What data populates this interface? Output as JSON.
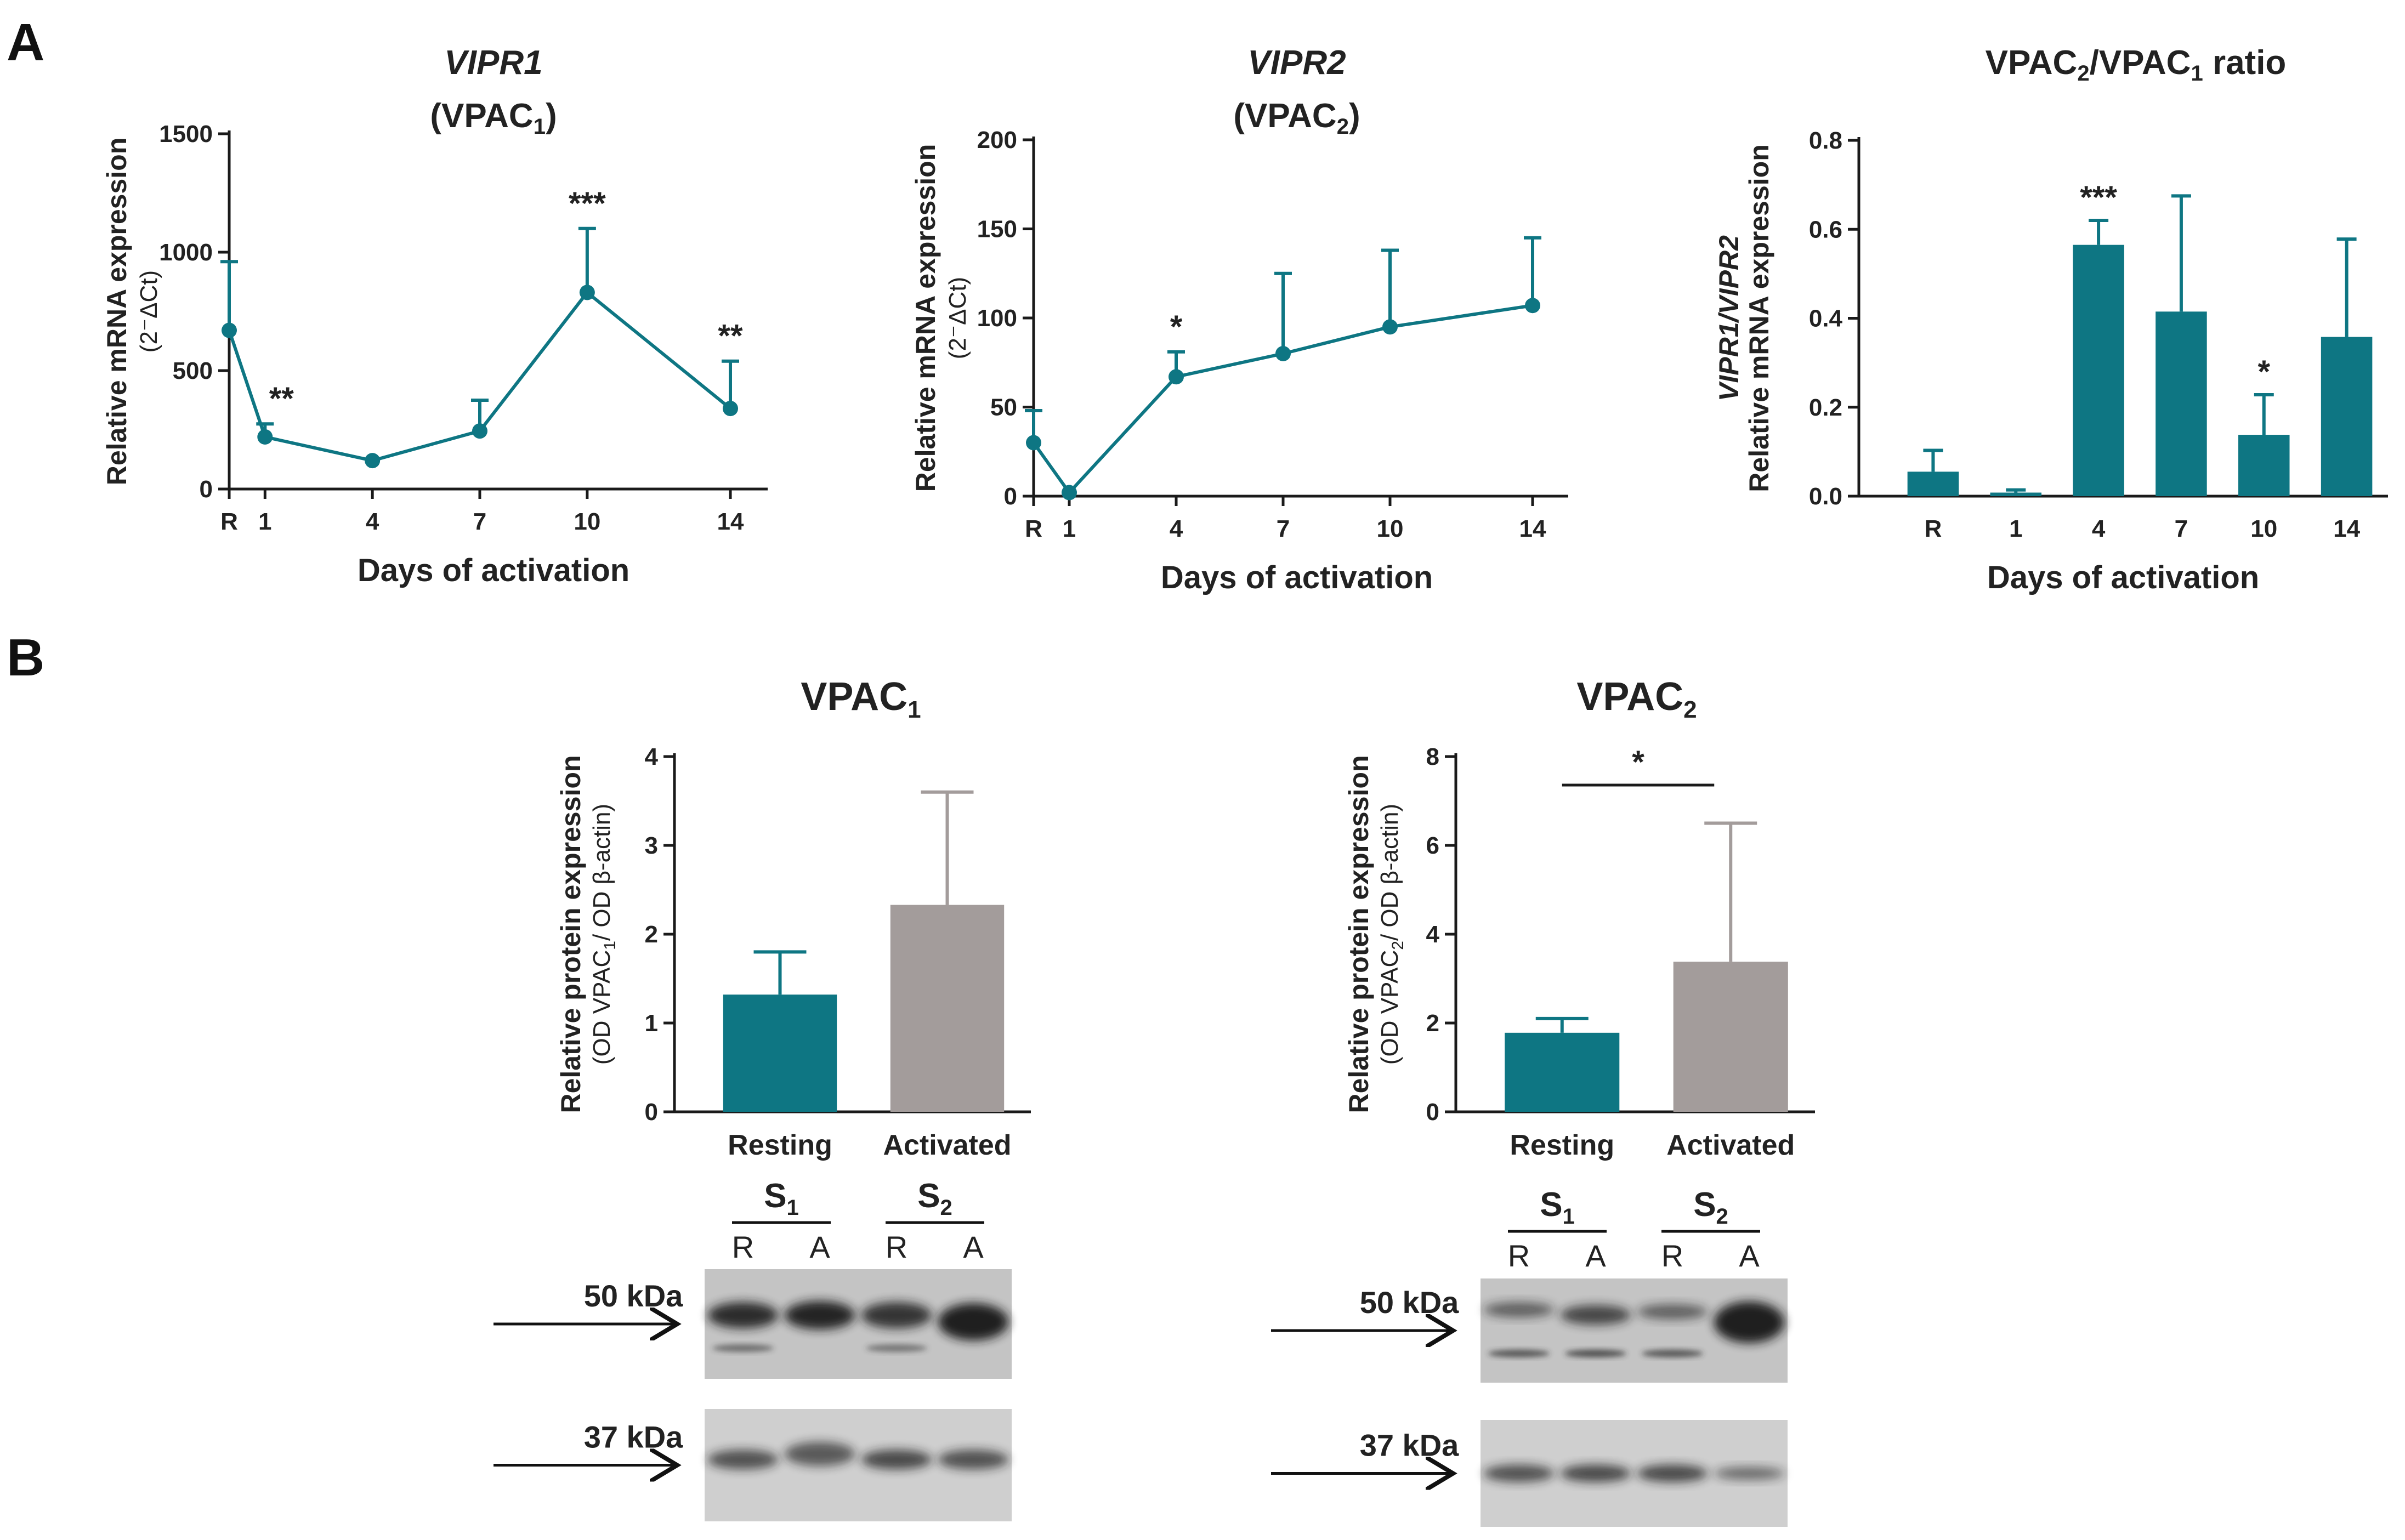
{
  "colors": {
    "teal": "#0e7683",
    "gray": "#a39c9b",
    "axis": "#1a1a1a"
  },
  "panel_labels": {
    "a": "A",
    "b": "B"
  },
  "chart_data": [
    {
      "id": "vipr1",
      "type": "line",
      "title": "VIPR1",
      "subtitle_main": "(VPAC",
      "subtitle_sub": "1",
      "subtitle_end": ")",
      "ylabel": "Relative mRNA expression",
      "ylabel_unit": "(2⁻ΔCt)",
      "xlabel": "Days of activation",
      "ylim": [
        0,
        1500
      ],
      "yticks": [
        "0",
        "500",
        "1000",
        "1500"
      ],
      "x": [
        0,
        1,
        4,
        7,
        10,
        14
      ],
      "xticklabels": [
        "R",
        "1",
        "4",
        "7",
        "10",
        "14"
      ],
      "values": [
        670,
        220,
        120,
        245,
        830,
        340
      ],
      "errors": [
        290,
        55,
        0,
        130,
        270,
        200
      ],
      "significance": [
        "",
        "**",
        "",
        "",
        "***",
        "**"
      ]
    },
    {
      "id": "vipr2",
      "type": "line",
      "title": "VIPR2",
      "subtitle_main": "(VPAC",
      "subtitle_sub": "2",
      "subtitle_end": ")",
      "ylabel": "Relative mRNA expression",
      "ylabel_unit": "(2⁻ΔCt)",
      "xlabel": "Days of activation",
      "ylim": [
        0,
        200
      ],
      "yticks": [
        "0",
        "50",
        "100",
        "150",
        "200"
      ],
      "x": [
        0,
        1,
        4,
        7,
        10,
        14
      ],
      "xticklabels": [
        "R",
        "1",
        "4",
        "7",
        "10",
        "14"
      ],
      "values": [
        30,
        2,
        67,
        80,
        95,
        107
      ],
      "errors": [
        18,
        0,
        14,
        45,
        43,
        38
      ],
      "significance": [
        "",
        "",
        "*",
        "",
        "",
        ""
      ]
    },
    {
      "id": "ratio",
      "type": "bar",
      "title_pre": "VPAC",
      "title_sub1": "2",
      "title_mid": "/VPAC",
      "title_sub2": "1",
      "title_post": " ratio",
      "ylabel": "Relative mRNA expression",
      "ylabel_ital": "VIPR1/VIPR2",
      "xlabel": "Days of activation",
      "ylim": [
        0,
        0.8
      ],
      "yticks": [
        "0.0",
        "0.2",
        "0.4",
        "0.6",
        "0.8"
      ],
      "categories": [
        "R",
        "1",
        "4",
        "7",
        "10",
        "14"
      ],
      "values": [
        0.055,
        0.008,
        0.565,
        0.415,
        0.138,
        0.358
      ],
      "errors": [
        0.048,
        0.006,
        0.055,
        0.26,
        0.09,
        0.22
      ],
      "significance": [
        "",
        "",
        "***",
        "",
        "*",
        ""
      ]
    },
    {
      "id": "vpac1-protein",
      "type": "bar",
      "title_pre": "VPAC",
      "title_sub": "1",
      "ylabel": "Relative protein expression",
      "ylabel2_pre": "(OD VPAC",
      "ylabel2_sub": "1",
      "ylabel2_post": "/ OD β-actin)",
      "ylim": [
        0,
        4
      ],
      "yticks": [
        "0",
        "1",
        "2",
        "3",
        "4"
      ],
      "categories": [
        "Resting",
        "Activated"
      ],
      "values": [
        1.32,
        2.33
      ],
      "errors": [
        0.48,
        1.27
      ],
      "significance": ""
    },
    {
      "id": "vpac2-protein",
      "type": "bar",
      "title_pre": "VPAC",
      "title_sub": "2",
      "ylabel": "Relative protein expression",
      "ylabel2_pre": "(OD VPAC",
      "ylabel2_sub": "2",
      "ylabel2_post": "/ OD β-actin)",
      "ylim": [
        0,
        8
      ],
      "yticks": [
        "0",
        "2",
        "4",
        "6",
        "8"
      ],
      "categories": [
        "Resting",
        "Activated"
      ],
      "values": [
        1.78,
        3.38
      ],
      "errors": [
        0.32,
        3.12
      ],
      "significance": "*"
    }
  ],
  "blots": [
    {
      "id": "blot-vpac1",
      "samples": [
        {
          "main": "S",
          "sub": "1"
        },
        {
          "main": "S",
          "sub": "2"
        }
      ],
      "lanes": [
        "R",
        "A",
        "R",
        "A"
      ],
      "markers": [
        "50 kDa",
        "37 kDa"
      ]
    },
    {
      "id": "blot-vpac2",
      "samples": [
        {
          "main": "S",
          "sub": "1"
        },
        {
          "main": "S",
          "sub": "2"
        }
      ],
      "lanes": [
        "R",
        "A",
        "R",
        "A"
      ],
      "markers": [
        "50 kDa",
        "37 kDa"
      ]
    }
  ]
}
